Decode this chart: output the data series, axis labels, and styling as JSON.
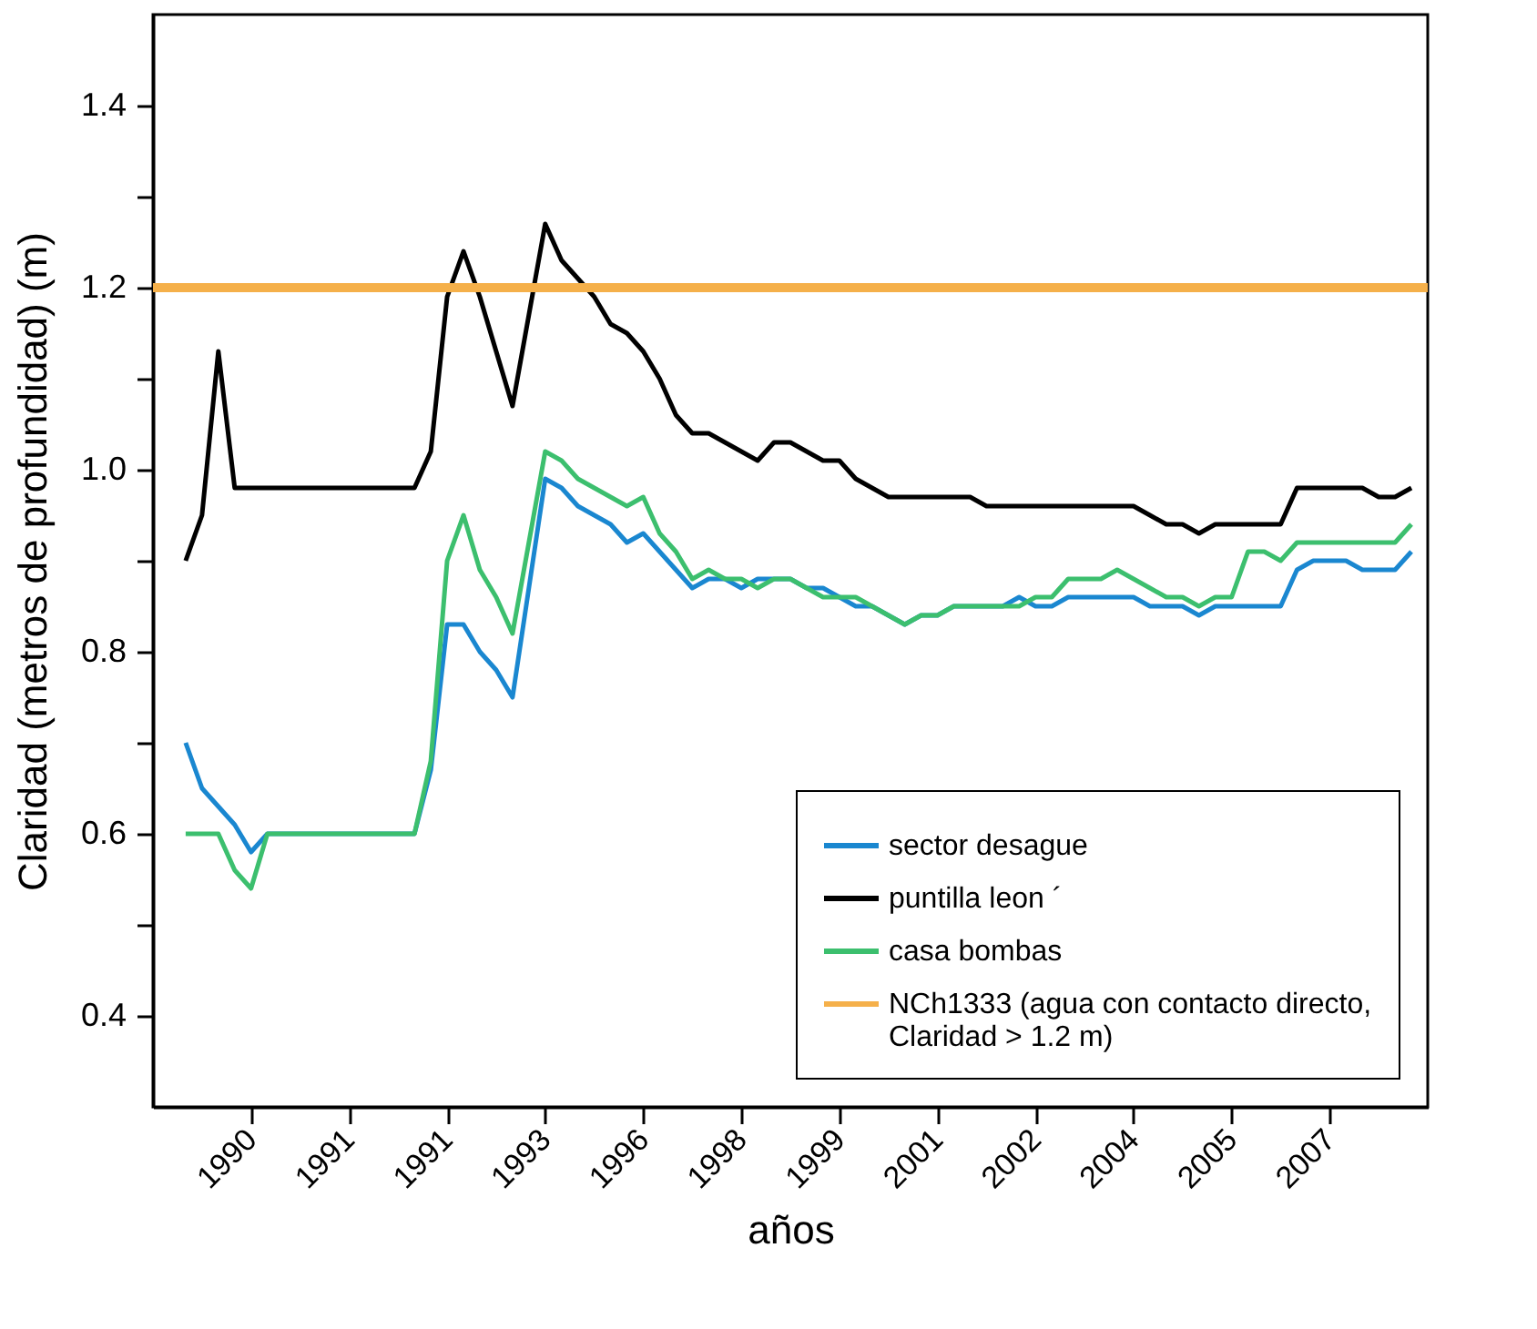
{
  "chart_data": {
    "type": "line",
    "xlabel": "años",
    "ylabel": "Claridad (metros de profundidad) (m)",
    "categories": [
      null,
      null,
      null,
      null,
      null,
      null,
      "1990",
      null,
      null,
      null,
      null,
      null,
      "1991",
      null,
      null,
      null,
      null,
      null,
      "1991",
      null,
      null,
      null,
      null,
      null,
      "1993",
      null,
      null,
      null,
      null,
      null,
      "1996",
      null,
      null,
      null,
      null,
      null,
      "1998",
      null,
      null,
      null,
      null,
      null,
      "1999",
      null,
      null,
      null,
      null,
      null,
      "2001",
      null,
      null,
      null,
      null,
      null,
      "2002",
      null,
      null,
      null,
      null,
      null,
      "2004",
      null,
      null,
      null,
      null,
      null,
      "2005",
      null,
      null,
      null,
      null,
      null,
      "2007",
      null,
      null,
      null,
      null,
      null,
      null
    ],
    "ylim": [
      0.3,
      1.5
    ],
    "yticks": [
      0.4,
      {
        "value": 0.5,
        "label": null
      },
      0.6,
      {
        "value": 0.7,
        "label": null
      },
      0.8,
      {
        "value": 0.9,
        "label": null
      },
      {
        "value": 1.0,
        "label": "1.0"
      },
      {
        "value": 1.1,
        "label": null
      },
      1.2,
      {
        "value": 1.3,
        "label": null
      },
      1.4
    ],
    "grid": false,
    "legend": "bottom right",
    "marker": "none",
    "line_style": "solid",
    "ref_lines": [
      {
        "axis": "y",
        "value": 1.2,
        "label": "NCh1333 (agua con contacto directo, Claridad > 1.2 m)",
        "color": "#f5b04a"
      }
    ],
    "series": [
      {
        "name": "sector desague",
        "color": "#1a87d0",
        "values": [
          null,
          null,
          0.7,
          0.65,
          0.63,
          0.61,
          0.58,
          0.6,
          0.6,
          0.6,
          0.6,
          0.6,
          0.6,
          0.6,
          0.6,
          0.6,
          0.6,
          0.67,
          0.83,
          0.83,
          0.8,
          0.78,
          0.75,
          0.87,
          0.99,
          0.98,
          0.96,
          0.95,
          0.94,
          0.92,
          0.93,
          0.91,
          0.89,
          0.87,
          0.88,
          0.88,
          0.87,
          0.88,
          0.88,
          0.88,
          0.87,
          0.87,
          0.86,
          0.85,
          0.85,
          0.84,
          0.83,
          0.84,
          0.84,
          0.85,
          0.85,
          0.85,
          0.85,
          0.86,
          0.85,
          0.85,
          0.86,
          0.86,
          0.86,
          0.86,
          0.86,
          0.85,
          0.85,
          0.85,
          0.84,
          0.85,
          0.85,
          0.85,
          0.85,
          0.85,
          0.89,
          0.9,
          0.9,
          0.9,
          0.89,
          0.89,
          0.89,
          0.91,
          null
        ]
      },
      {
        "name": "puntilla leon ´",
        "color": "#000000",
        "values": [
          null,
          null,
          0.9,
          0.95,
          1.13,
          0.98,
          0.98,
          0.98,
          0.98,
          0.98,
          0.98,
          0.98,
          0.98,
          0.98,
          0.98,
          0.98,
          0.98,
          1.02,
          1.19,
          1.24,
          1.19,
          1.13,
          1.07,
          1.17,
          1.27,
          1.23,
          1.21,
          1.19,
          1.16,
          1.15,
          1.13,
          1.1,
          1.06,
          1.04,
          1.04,
          1.03,
          1.02,
          1.01,
          1.03,
          1.03,
          1.02,
          1.01,
          1.01,
          0.99,
          0.98,
          0.97,
          0.97,
          0.97,
          0.97,
          0.97,
          0.97,
          0.96,
          0.96,
          0.96,
          0.96,
          0.96,
          0.96,
          0.96,
          0.96,
          0.96,
          0.96,
          0.95,
          0.94,
          0.94,
          0.93,
          0.94,
          0.94,
          0.94,
          0.94,
          0.94,
          0.98,
          0.98,
          0.98,
          0.98,
          0.98,
          0.97,
          0.97,
          0.98,
          null
        ]
      },
      {
        "name": "casa bombas",
        "color": "#3cbf6e",
        "values": [
          null,
          null,
          0.6,
          0.6,
          0.6,
          0.56,
          0.54,
          0.6,
          0.6,
          0.6,
          0.6,
          0.6,
          0.6,
          0.6,
          0.6,
          0.6,
          0.6,
          0.68,
          0.9,
          0.95,
          0.89,
          0.86,
          0.82,
          0.92,
          1.02,
          1.01,
          0.99,
          0.98,
          0.97,
          0.96,
          0.97,
          0.93,
          0.91,
          0.88,
          0.89,
          0.88,
          0.88,
          0.87,
          0.88,
          0.88,
          0.87,
          0.86,
          0.86,
          0.86,
          0.85,
          0.84,
          0.83,
          0.84,
          0.84,
          0.85,
          0.85,
          0.85,
          0.85,
          0.85,
          0.86,
          0.86,
          0.88,
          0.88,
          0.88,
          0.89,
          0.88,
          0.87,
          0.86,
          0.86,
          0.85,
          0.86,
          0.86,
          0.91,
          0.91,
          0.9,
          0.92,
          0.92,
          0.92,
          0.92,
          0.92,
          0.92,
          0.92,
          0.94,
          null
        ]
      }
    ]
  }
}
